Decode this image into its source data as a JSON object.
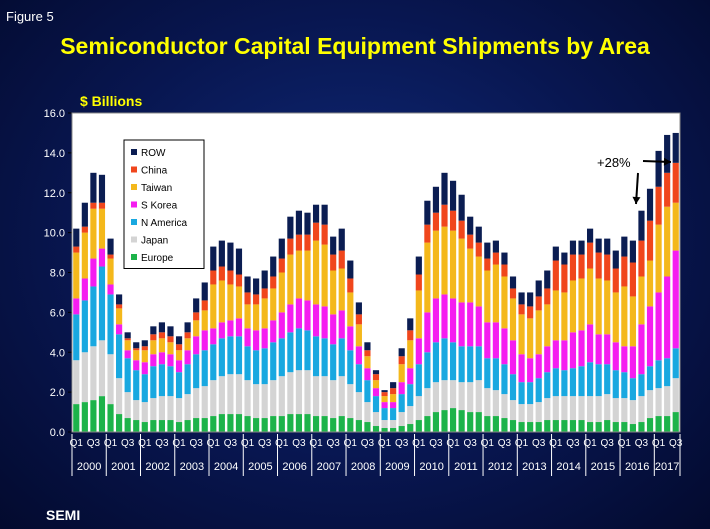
{
  "figure_label": "Figure 5",
  "title": "Semiconductor Capital Equipment Shipments by Area",
  "source_label": "SEMI",
  "colors": {
    "Europe": "#1db34a",
    "Japan": "#d4d4d4",
    "N America": "#19a8e0",
    "S Korea": "#f51df0",
    "Taiwan": "#f4b81b",
    "China": "#f0461c",
    "ROW": "#0b1d52"
  },
  "chart_data": {
    "type": "bar",
    "stacked": true,
    "ylabel": "$ Billions",
    "ylim": [
      0,
      16
    ],
    "yticks": [
      "0.0",
      "2.0",
      "4.0",
      "6.0",
      "8.0",
      "10.0",
      "12.0",
      "14.0",
      "16.0"
    ],
    "x_tick_labels": [
      "Q1",
      "Q3",
      "Q1",
      "Q3",
      "Q1",
      "Q3",
      "Q1",
      "Q3",
      "Q1",
      "Q3",
      "Q1",
      "Q3",
      "Q1",
      "Q3",
      "Q1",
      "Q3",
      "Q1",
      "Q3",
      "Q1",
      "Q3",
      "Q1",
      "Q3",
      "Q1",
      "Q3",
      "Q1",
      "Q3",
      "Q1",
      "Q3",
      "Q1",
      "Q3",
      "Q1",
      "Q3",
      "Q1",
      "Q3",
      "Q1",
      "Q3"
    ],
    "years": [
      "2000",
      "2001",
      "2002",
      "2003",
      "2004",
      "2005",
      "2006",
      "2007",
      "2008",
      "2009",
      "2010",
      "2011",
      "2012",
      "2013",
      "2014",
      "2015",
      "2016",
      "2017"
    ],
    "legend": [
      "ROW",
      "China",
      "Taiwan",
      "S Korea",
      "N America",
      "Japan",
      "Europe"
    ],
    "legend_position": "top-left",
    "grid": false,
    "annotation": "+28%",
    "categories": [
      "2000 Q1",
      "2000 Q2",
      "2000 Q3",
      "2000 Q4",
      "2001 Q1",
      "2001 Q2",
      "2001 Q3",
      "2001 Q4",
      "2002 Q1",
      "2002 Q2",
      "2002 Q3",
      "2002 Q4",
      "2003 Q1",
      "2003 Q2",
      "2003 Q3",
      "2003 Q4",
      "2004 Q1",
      "2004 Q2",
      "2004 Q3",
      "2004 Q4",
      "2005 Q1",
      "2005 Q2",
      "2005 Q3",
      "2005 Q4",
      "2006 Q1",
      "2006 Q2",
      "2006 Q3",
      "2006 Q4",
      "2007 Q1",
      "2007 Q2",
      "2007 Q3",
      "2007 Q4",
      "2008 Q1",
      "2008 Q2",
      "2008 Q3",
      "2008 Q4",
      "2009 Q1",
      "2009 Q2",
      "2009 Q3",
      "2009 Q4",
      "2010 Q1",
      "2010 Q2",
      "2010 Q3",
      "2010 Q4",
      "2011 Q1",
      "2011 Q2",
      "2011 Q3",
      "2011 Q4",
      "2012 Q1",
      "2012 Q2",
      "2012 Q3",
      "2012 Q4",
      "2013 Q1",
      "2013 Q2",
      "2013 Q3",
      "2013 Q4",
      "2014 Q1",
      "2014 Q2",
      "2014 Q3",
      "2014 Q4",
      "2015 Q1",
      "2015 Q2",
      "2015 Q3",
      "2015 Q4",
      "2016 Q1",
      "2016 Q2",
      "2016 Q3",
      "2016 Q4",
      "2017 Q1",
      "2017 Q2",
      "2017 Q3"
    ],
    "series": [
      {
        "name": "Europe",
        "values": [
          1.4,
          1.5,
          1.6,
          1.8,
          1.4,
          0.9,
          0.7,
          0.6,
          0.5,
          0.6,
          0.6,
          0.6,
          0.5,
          0.6,
          0.7,
          0.7,
          0.8,
          0.9,
          0.9,
          0.9,
          0.8,
          0.7,
          0.7,
          0.8,
          0.8,
          0.9,
          0.9,
          0.9,
          0.8,
          0.8,
          0.7,
          0.8,
          0.7,
          0.6,
          0.5,
          0.3,
          0.2,
          0.2,
          0.3,
          0.4,
          0.6,
          0.8,
          1.0,
          1.1,
          1.2,
          1.1,
          1.0,
          1.0,
          0.8,
          0.8,
          0.7,
          0.6,
          0.5,
          0.5,
          0.5,
          0.6,
          0.6,
          0.6,
          0.6,
          0.6,
          0.5,
          0.5,
          0.6,
          0.5,
          0.5,
          0.4,
          0.5,
          0.7,
          0.8,
          0.8,
          1.0
        ]
      },
      {
        "name": "Japan",
        "values": [
          2.2,
          2.5,
          2.7,
          2.8,
          2.5,
          1.8,
          1.3,
          1.0,
          1.0,
          1.1,
          1.2,
          1.2,
          1.2,
          1.3,
          1.5,
          1.6,
          1.8,
          1.9,
          2.0,
          2.0,
          1.8,
          1.7,
          1.7,
          1.8,
          2.0,
          2.1,
          2.2,
          2.2,
          2.0,
          2.0,
          1.9,
          2.0,
          1.7,
          1.4,
          1.0,
          0.7,
          0.4,
          0.4,
          0.7,
          0.9,
          1.2,
          1.4,
          1.5,
          1.5,
          1.4,
          1.4,
          1.5,
          1.6,
          1.4,
          1.3,
          1.2,
          1.0,
          0.9,
          0.9,
          1.0,
          1.1,
          1.2,
          1.2,
          1.2,
          1.2,
          1.3,
          1.3,
          1.3,
          1.2,
          1.2,
          1.2,
          1.3,
          1.4,
          1.4,
          1.5,
          1.7
        ]
      },
      {
        "name": "N America",
        "values": [
          2.3,
          2.6,
          3.0,
          3.7,
          3.0,
          2.2,
          1.7,
          1.5,
          1.4,
          1.6,
          1.6,
          1.5,
          1.3,
          1.5,
          1.7,
          1.8,
          1.8,
          1.9,
          1.9,
          1.9,
          1.7,
          1.7,
          1.8,
          1.9,
          1.9,
          2.0,
          2.1,
          2.0,
          2.0,
          1.9,
          1.8,
          1.9,
          1.7,
          1.4,
          1.1,
          0.8,
          0.6,
          0.6,
          0.9,
          1.1,
          1.6,
          1.8,
          2.0,
          2.1,
          1.9,
          1.8,
          1.8,
          1.7,
          1.5,
          1.6,
          1.5,
          1.3,
          1.1,
          1.1,
          1.2,
          1.3,
          1.4,
          1.3,
          1.4,
          1.5,
          1.7,
          1.6,
          1.5,
          1.4,
          1.3,
          1.1,
          1.1,
          1.2,
          1.4,
          1.4,
          1.5
        ]
      },
      {
        "name": "S Korea",
        "values": [
          0.8,
          1.1,
          1.4,
          0.9,
          0.5,
          0.5,
          0.4,
          0.5,
          0.6,
          0.6,
          0.6,
          0.6,
          0.6,
          0.7,
          0.9,
          1.0,
          0.8,
          0.8,
          0.8,
          0.9,
          0.9,
          1.0,
          1.0,
          1.1,
          1.3,
          1.4,
          1.5,
          1.5,
          1.6,
          1.6,
          1.5,
          1.4,
          1.2,
          0.9,
          0.6,
          0.4,
          0.3,
          0.3,
          0.6,
          0.8,
          1.3,
          2.0,
          2.2,
          2.2,
          2.2,
          2.2,
          2.2,
          2.0,
          1.8,
          1.8,
          1.8,
          1.7,
          1.4,
          1.2,
          1.2,
          1.3,
          1.4,
          1.5,
          1.8,
          1.8,
          1.9,
          1.5,
          1.5,
          1.4,
          1.3,
          1.6,
          2.5,
          3.0,
          3.4,
          4.1,
          4.9
        ]
      },
      {
        "name": "Taiwan",
        "values": [
          2.3,
          2.3,
          2.5,
          2.0,
          1.3,
          0.8,
          0.5,
          0.5,
          0.6,
          0.7,
          0.7,
          0.6,
          0.5,
          0.6,
          0.8,
          1.0,
          2.2,
          2.1,
          1.8,
          1.6,
          1.2,
          1.3,
          1.5,
          1.6,
          2.0,
          2.5,
          2.4,
          2.5,
          3.2,
          3.1,
          2.2,
          2.1,
          1.7,
          1.1,
          0.6,
          0.4,
          0.3,
          0.4,
          0.9,
          1.4,
          2.4,
          3.5,
          3.4,
          3.4,
          3.4,
          3.2,
          2.7,
          2.5,
          2.6,
          2.9,
          2.6,
          2.1,
          2.0,
          2.0,
          2.2,
          2.1,
          2.5,
          2.4,
          2.6,
          2.6,
          2.8,
          2.8,
          2.7,
          2.5,
          3.0,
          2.5,
          2.4,
          2.3,
          3.4,
          3.5,
          2.4
        ]
      },
      {
        "name": "China",
        "values": [
          0.3,
          0.3,
          0.3,
          0.3,
          0.2,
          0.2,
          0.1,
          0.1,
          0.2,
          0.3,
          0.3,
          0.3,
          0.3,
          0.3,
          0.4,
          0.5,
          0.7,
          0.7,
          0.7,
          0.6,
          0.6,
          0.5,
          0.5,
          0.6,
          0.7,
          0.8,
          0.8,
          0.8,
          0.9,
          1.0,
          0.8,
          0.9,
          0.7,
          0.5,
          0.3,
          0.3,
          0.2,
          0.3,
          0.4,
          0.5,
          0.8,
          0.9,
          0.9,
          1.1,
          1.0,
          0.9,
          0.7,
          0.7,
          0.6,
          0.6,
          0.6,
          0.5,
          0.5,
          0.6,
          0.7,
          0.8,
          1.5,
          1.4,
          1.3,
          1.2,
          1.3,
          1.3,
          1.3,
          1.2,
          1.5,
          1.7,
          1.8,
          2.0,
          1.9,
          1.7,
          2.0
        ]
      },
      {
        "name": "ROW",
        "values": [
          0.9,
          1.2,
          1.5,
          1.4,
          0.8,
          0.5,
          0.3,
          0.3,
          0.3,
          0.4,
          0.5,
          0.5,
          0.4,
          0.5,
          0.7,
          0.9,
          1.2,
          1.3,
          1.4,
          1.3,
          0.8,
          0.8,
          0.9,
          1.0,
          1.0,
          1.1,
          1.2,
          1.1,
          0.9,
          1.0,
          0.9,
          1.1,
          0.9,
          0.6,
          0.4,
          0.2,
          0.1,
          0.3,
          0.4,
          0.6,
          0.9,
          1.2,
          1.3,
          1.6,
          1.5,
          1.3,
          0.9,
          0.8,
          0.8,
          0.6,
          0.6,
          0.6,
          0.6,
          0.7,
          0.8,
          0.9,
          0.7,
          0.6,
          0.7,
          0.7,
          0.7,
          0.7,
          0.8,
          0.9,
          1.0,
          1.1,
          1.5,
          1.6,
          1.8,
          1.9,
          1.5
        ]
      }
    ]
  }
}
